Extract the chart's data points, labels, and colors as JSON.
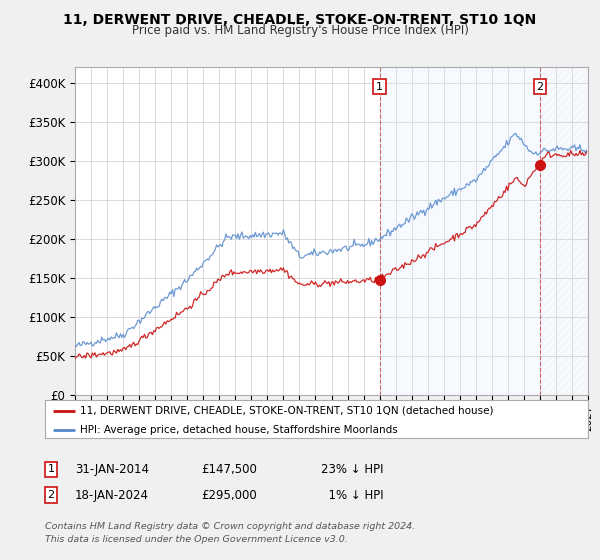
{
  "title": "11, DERWENT DRIVE, CHEADLE, STOKE-ON-TRENT, ST10 1QN",
  "subtitle": "Price paid vs. HM Land Registry's House Price Index (HPI)",
  "ylim": [
    0,
    420000
  ],
  "yticks": [
    0,
    50000,
    100000,
    150000,
    200000,
    250000,
    300000,
    350000,
    400000
  ],
  "ytick_labels": [
    "£0",
    "£50K",
    "£100K",
    "£150K",
    "£200K",
    "£250K",
    "£300K",
    "£350K",
    "£400K"
  ],
  "hpi_color": "#5588cc",
  "price_color": "#cc1111",
  "legend_line1": "11, DERWENT DRIVE, CHEADLE, STOKE-ON-TRENT, ST10 1QN (detached house)",
  "legend_line2": "HPI: Average price, detached house, Staffordshire Moorlands",
  "footnote": "Contains HM Land Registry data © Crown copyright and database right 2024.\nThis data is licensed under the Open Government Licence v3.0.",
  "bg_color": "#f0f0f0",
  "plot_bg_color": "#ffffff",
  "grid_color": "#cccccc",
  "shade_color": "#ddeeff",
  "hatch_color": "#ccddee",
  "idx_2014": 228,
  "idx_2024": 348,
  "marker1_price": 147500,
  "marker2_price": 295000
}
